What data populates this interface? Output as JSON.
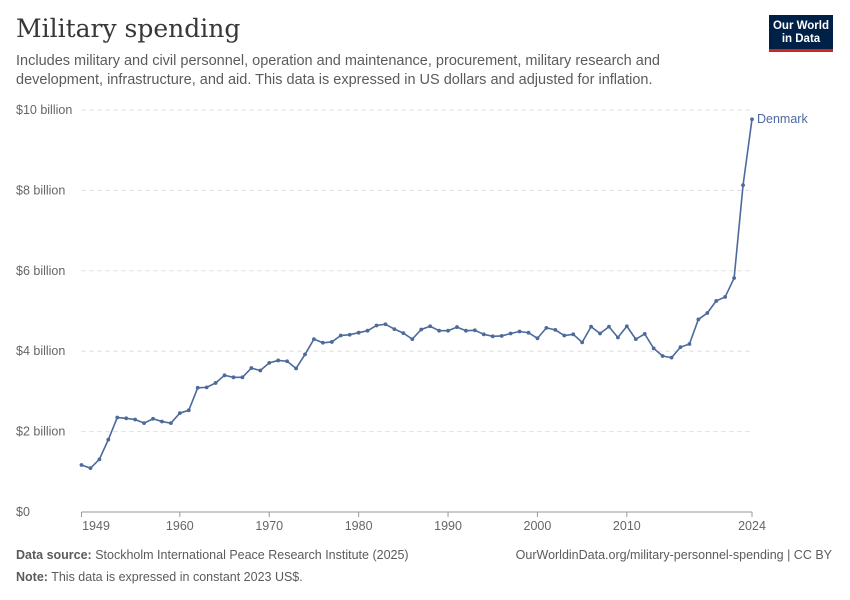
{
  "header": {
    "title": "Military spending",
    "subtitle": "Includes military and civil personnel, operation and maintenance, procurement, military research and development, infrastructure, and aid. This data is expressed in US dollars and adjusted for inflation.",
    "logo_line1": "Our World",
    "logo_line2": "in Data"
  },
  "footer": {
    "source_label": "Data source:",
    "source": "Stockholm International Peace Research Institute (2025)",
    "url": "OurWorldinData.org/military-personnel-spending | CC BY",
    "note_label": "Note:",
    "note": "This data is expressed in constant 2023 US$."
  },
  "colors": {
    "series": "#4c6a9c",
    "grid": "#dddddd",
    "logo_bg": "#002147",
    "logo_accent": "#ce261e"
  },
  "chart_data": {
    "type": "line",
    "title": "Military spending",
    "xlim": [
      1949,
      2024
    ],
    "ylim": [
      0,
      10
    ],
    "grid": true,
    "x_ticks": [
      1949,
      1960,
      1970,
      1980,
      1990,
      2000,
      2010,
      2024
    ],
    "y_ticks": [
      {
        "v": 0,
        "label": "$0"
      },
      {
        "v": 2,
        "label": "$2 billion"
      },
      {
        "v": 4,
        "label": "$4 billion"
      },
      {
        "v": 6,
        "label": "$6 billion"
      },
      {
        "v": 8,
        "label": "$8 billion"
      },
      {
        "v": 10,
        "label": "$10 billion"
      }
    ],
    "series": [
      {
        "name": "Denmark",
        "unit": "billion US$",
        "x_start": 1949,
        "values": [
          1.17,
          1.09,
          1.31,
          1.8,
          2.35,
          2.33,
          2.3,
          2.21,
          2.32,
          2.25,
          2.21,
          2.46,
          2.53,
          3.09,
          3.1,
          3.21,
          3.4,
          3.35,
          3.35,
          3.58,
          3.52,
          3.71,
          3.77,
          3.75,
          3.57,
          3.92,
          4.3,
          4.21,
          4.23,
          4.39,
          4.41,
          4.46,
          4.51,
          4.64,
          4.67,
          4.55,
          4.45,
          4.3,
          4.54,
          4.62,
          4.51,
          4.51,
          4.6,
          4.51,
          4.52,
          4.42,
          4.37,
          4.38,
          4.44,
          4.49,
          4.46,
          4.32,
          4.58,
          4.53,
          4.39,
          4.42,
          4.22,
          4.61,
          4.44,
          4.61,
          4.34,
          4.62,
          4.3,
          4.43,
          4.07,
          3.88,
          3.84,
          4.1,
          4.18,
          4.79,
          4.95,
          5.25,
          5.35,
          5.82,
          8.13,
          9.77
        ]
      }
    ]
  }
}
